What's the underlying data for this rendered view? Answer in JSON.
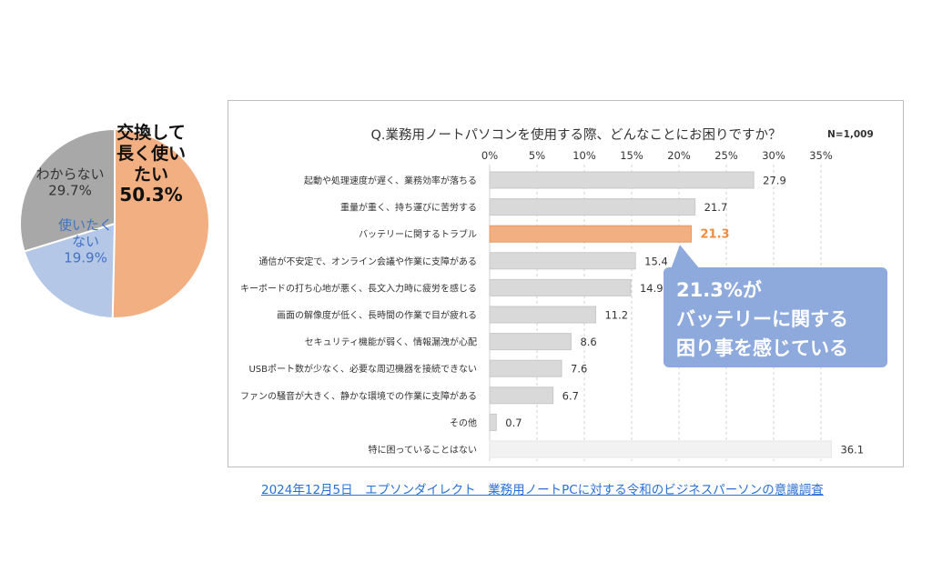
{
  "colors": {
    "accent_orange": "#F2B082",
    "highlight_orange": "#F08A3C",
    "pie_gray": "#A8A8A8",
    "pie_blue": "#B4C7E7",
    "blue_text": "#4472C4",
    "bar_gray": "#D9D9D9",
    "bar_light": "#F2F2F2",
    "callout_blue": "#8EA9DB",
    "link_blue": "#2A6FD6"
  },
  "pie": {
    "chart_data": {
      "type": "pie",
      "slices": [
        {
          "label_lines": [
            "交換して",
            "長く使い",
            "たい"
          ],
          "value_label": "50.3%",
          "value": 50.3
        },
        {
          "label_lines": [
            "使いたく",
            "ない"
          ],
          "value_label": "19.9%",
          "value": 19.9
        },
        {
          "label_lines": [
            "わからない"
          ],
          "value_label": "29.7%",
          "value": 29.7
        }
      ]
    }
  },
  "chart_data": {
    "type": "bar",
    "title": "Q.業務用ノートパソコンを使用する際、どんなことにお困りですか？",
    "n_label": "N=1,009",
    "x_ticks": [
      "0%",
      "5%",
      "10%",
      "15%",
      "20%",
      "25%",
      "30%",
      "35%"
    ],
    "xlim": [
      0,
      35
    ],
    "categories": [
      "起動や処理速度が遅く、業務効率が落ちる",
      "重量が重く、持ち運びに苦労する",
      "バッテリーに関するトラブル",
      "通信が不安定で、オンライン会議や作業に支障がある",
      "キーボードの打ち心地が悪く、長文入力時に疲労を感じる",
      "画面の解像度が低く、長時間の作業で目が疲れる",
      "セキュリティ機能が弱く、情報漏洩が心配",
      "USBポート数が少なく、必要な周辺機器を接続できない",
      "ファンの騒音が大きく、静かな環境での作業に支障がある",
      "その他",
      "特に困っていることはない"
    ],
    "values": [
      27.9,
      21.7,
      21.3,
      15.4,
      14.9,
      11.2,
      8.6,
      7.6,
      6.7,
      0.7,
      36.1
    ],
    "value_labels": [
      "27.9",
      "21.7",
      "21.3",
      "15.4",
      "14.9",
      "11.2",
      "8.6",
      "7.6",
      "6.7",
      "0.7",
      "36.1"
    ],
    "highlight_index": 2,
    "muted_index": 10,
    "grid": true
  },
  "callout": {
    "lines": [
      "21.3%が",
      "バッテリーに関する",
      "困り事を感じている"
    ]
  },
  "source_text": "2024年12月5日　エプソンダイレクト　業務用ノートPCに対する令和のビジネスパーソンの意識調査"
}
